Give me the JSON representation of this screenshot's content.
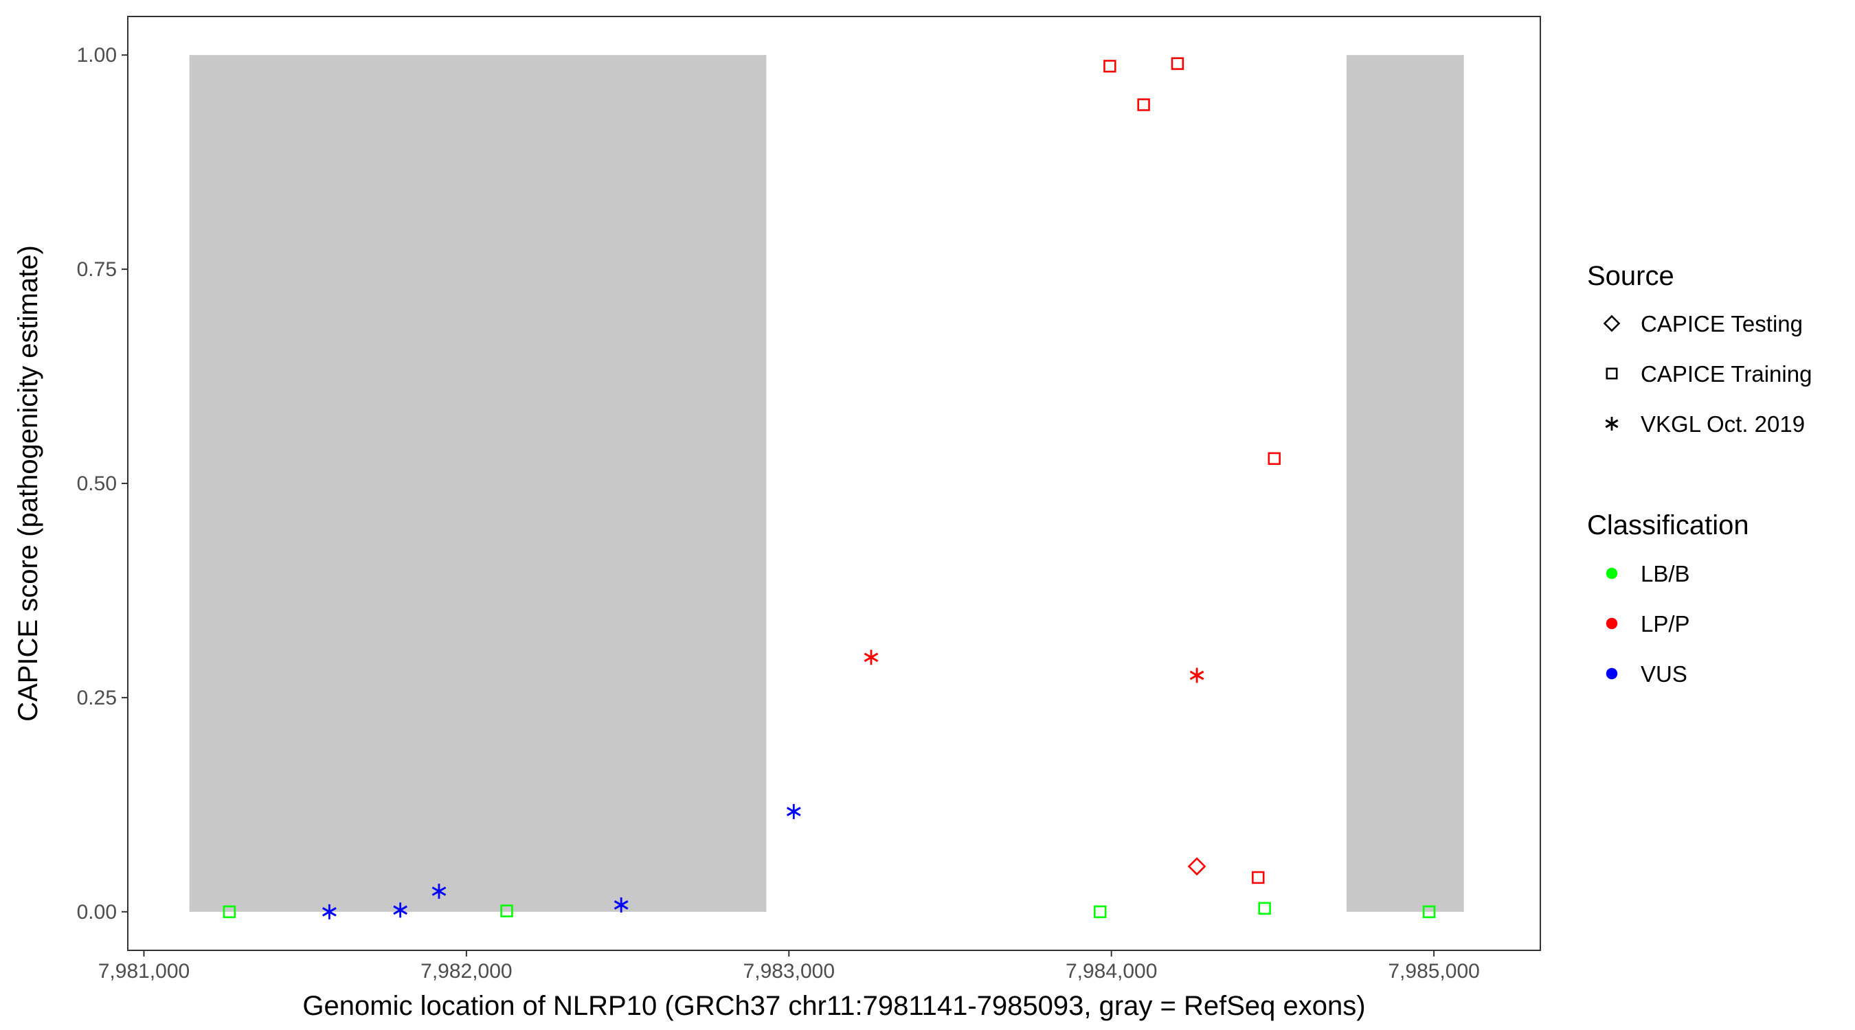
{
  "chart_data": {
    "type": "scatter",
    "xlabel": "Genomic location of NLRP10 (GRCh37 chr11:7981141-7985093, gray = RefSeq exons)",
    "ylabel": "CAPICE score (pathogenicity estimate)",
    "xlim": [
      7980950,
      7985330
    ],
    "ylim": [
      -0.045,
      1.045
    ],
    "x_ticks": [
      7981000,
      7982000,
      7983000,
      7984000,
      7985000
    ],
    "x_tick_labels": [
      "7,981,000",
      "7,982,000",
      "7,983,000",
      "7,984,000",
      "7,985,000"
    ],
    "y_ticks": [
      0,
      0.25,
      0.5,
      0.75,
      1.0
    ],
    "y_tick_labels": [
      "0.00",
      "0.25",
      "0.50",
      "0.75",
      "1.00"
    ],
    "grid": false,
    "exon_regions": [
      {
        "start": 7981141,
        "end": 7982930,
        "ymin": 0,
        "ymax": 1,
        "color": "#c8c8c8"
      },
      {
        "start": 7984729,
        "end": 7985093,
        "ymin": 0,
        "ymax": 1,
        "color": "#c8c8c8"
      }
    ],
    "points": [
      {
        "x": 7981265,
        "y": 0.0,
        "source": "CAPICE Training",
        "classification": "LB/B"
      },
      {
        "x": 7981575,
        "y": 0.0,
        "source": "VKGL Oct. 2019",
        "classification": "VUS"
      },
      {
        "x": 7981795,
        "y": 0.002,
        "source": "VKGL Oct. 2019",
        "classification": "VUS"
      },
      {
        "x": 7981915,
        "y": 0.024,
        "source": "VKGL Oct. 2019",
        "classification": "VUS"
      },
      {
        "x": 7982125,
        "y": 0.001,
        "source": "CAPICE Training",
        "classification": "LB/B"
      },
      {
        "x": 7982480,
        "y": 0.008,
        "source": "VKGL Oct. 2019",
        "classification": "VUS"
      },
      {
        "x": 7983015,
        "y": 0.117,
        "source": "VKGL Oct. 2019",
        "classification": "VUS"
      },
      {
        "x": 7983255,
        "y": 0.297,
        "source": "VKGL Oct. 2019",
        "classification": "LP/P"
      },
      {
        "x": 7983965,
        "y": 0.0,
        "source": "CAPICE Training",
        "classification": "LB/B"
      },
      {
        "x": 7983995,
        "y": 0.987,
        "source": "CAPICE Training",
        "classification": "LP/P"
      },
      {
        "x": 7984100,
        "y": 0.942,
        "source": "CAPICE Training",
        "classification": "LP/P"
      },
      {
        "x": 7984205,
        "y": 0.99,
        "source": "CAPICE Training",
        "classification": "LP/P"
      },
      {
        "x": 7984265,
        "y": 0.276,
        "source": "VKGL Oct. 2019",
        "classification": "LP/P"
      },
      {
        "x": 7984265,
        "y": 0.053,
        "source": "CAPICE Testing",
        "classification": "LP/P"
      },
      {
        "x": 7984455,
        "y": 0.04,
        "source": "CAPICE Training",
        "classification": "LP/P"
      },
      {
        "x": 7984475,
        "y": 0.004,
        "source": "CAPICE Training",
        "classification": "LB/B"
      },
      {
        "x": 7984505,
        "y": 0.529,
        "source": "CAPICE Training",
        "classification": "LP/P"
      },
      {
        "x": 7984985,
        "y": 0.0,
        "source": "CAPICE Training",
        "classification": "LB/B"
      }
    ],
    "legend": {
      "placement": "right",
      "source_title": "Source",
      "source_items": [
        {
          "label": "CAPICE Testing",
          "shape": "diamond"
        },
        {
          "label": "CAPICE Training",
          "shape": "square"
        },
        {
          "label": "VKGL Oct. 2019",
          "shape": "asterisk"
        }
      ],
      "classification_title": "Classification",
      "classification_items": [
        {
          "label": "LB/B",
          "color": "#00ff00"
        },
        {
          "label": "LP/P",
          "color": "#ff0000"
        },
        {
          "label": "VUS",
          "color": "#0000ff"
        }
      ]
    },
    "shape_map": {
      "CAPICE Testing": "diamond",
      "CAPICE Training": "square",
      "VKGL Oct. 2019": "asterisk"
    },
    "color_map": {
      "LB/B": "#00ff00",
      "LP/P": "#ff0000",
      "VUS": "#0000ff"
    }
  }
}
